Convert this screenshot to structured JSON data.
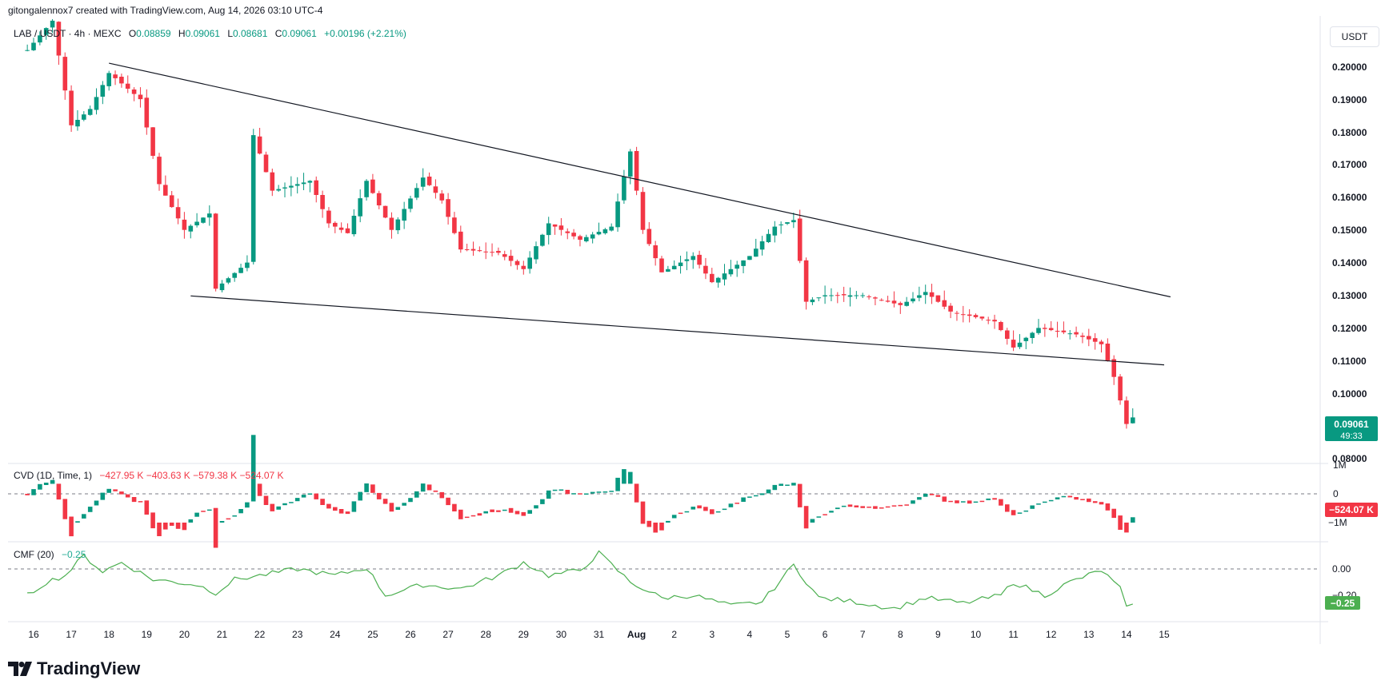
{
  "header": {
    "attribution": "gitongalennox7 created with TradingView.com, Aug 14, 2026 03:10 UTC-4"
  },
  "legend": {
    "symbol": "LAB / USDT · 4h · MEXC",
    "o_label": "O",
    "o": "0.08859",
    "h_label": "H",
    "h": "0.09061",
    "l_label": "L",
    "l": "0.08681",
    "c_label": "C",
    "c": "0.09061",
    "change": "+0.00196 (+2.21%)"
  },
  "currency_button": "USDT",
  "cvd_legend": {
    "title": "CVD (1D, Time, 1)",
    "values": "−427.95 K  −403.63 K  −579.38 K  −524.07 K"
  },
  "cmf_legend": {
    "title": "CMF (20)",
    "value": "−0.25"
  },
  "price_axis": {
    "ticks": [
      "0.20000",
      "0.19000",
      "0.18000",
      "0.17000",
      "0.16000",
      "0.15000",
      "0.14000",
      "0.13000",
      "0.12000",
      "0.11000",
      "0.10000",
      "0.08000"
    ]
  },
  "last_price": {
    "value": "0.09061",
    "countdown": "49:33"
  },
  "cvd_axis": {
    "ticks": [
      "1M",
      "0",
      "−1M"
    ],
    "last": "−524.07 K"
  },
  "cmf_axis": {
    "ticks": [
      "0.00",
      "−0.20"
    ],
    "last": "−0.25"
  },
  "time_axis": {
    "labels": [
      "16",
      "17",
      "18",
      "19",
      "20",
      "21",
      "22",
      "23",
      "24",
      "25",
      "26",
      "27",
      "28",
      "29",
      "30",
      "31",
      "Aug",
      "2",
      "3",
      "4",
      "5",
      "6",
      "7",
      "8",
      "9",
      "10",
      "11",
      "12",
      "13",
      "14",
      "15"
    ]
  },
  "brand": {
    "name": "TradingView"
  },
  "colors": {
    "up": "#089981",
    "down": "#f23645",
    "cmf": "#4caf50",
    "trendline": "#131722"
  },
  "chart_data": [
    {
      "type": "candlestick",
      "title": "LAB / USDT · 4h · MEXC",
      "ylim": [
        0.077,
        0.205
      ],
      "ylabel": "USDT",
      "xlabel": "",
      "x_range": [
        "2026-07-15T20:00",
        "2026-08-15T12:00"
      ],
      "grid": false,
      "ohlc_keyframes": [
        [
          "2026-07-15T20:00",
          0.203
        ],
        [
          "2026-07-16T12:00",
          0.212
        ],
        [
          "2026-07-17T00:00",
          0.18
        ],
        [
          "2026-07-17T12:00",
          0.185
        ],
        [
          "2026-07-18T00:00",
          0.196
        ],
        [
          "2026-07-18T20:00",
          0.188
        ],
        [
          "2026-07-19T08:00",
          0.162
        ],
        [
          "2026-07-20T00:00",
          0.148
        ],
        [
          "2026-07-20T16:00",
          0.153
        ],
        [
          "2026-07-20T20:00",
          0.13
        ],
        [
          "2026-07-21T16:00",
          0.138
        ],
        [
          "2026-07-21T20:00",
          0.177
        ],
        [
          "2026-07-22T08:00",
          0.16
        ],
        [
          "2026-07-23T08:00",
          0.163
        ],
        [
          "2026-07-23T20:00",
          0.15
        ],
        [
          "2026-07-24T08:00",
          0.147
        ],
        [
          "2026-07-24T20:00",
          0.163
        ],
        [
          "2026-07-25T12:00",
          0.148
        ],
        [
          "2026-07-26T08:00",
          0.164
        ],
        [
          "2026-07-26T20:00",
          0.157
        ],
        [
          "2026-07-27T08:00",
          0.142
        ],
        [
          "2026-07-28T08:00",
          0.141
        ],
        [
          "2026-07-29T00:00",
          0.136
        ],
        [
          "2026-07-29T16:00",
          0.15
        ],
        [
          "2026-07-30T12:00",
          0.145
        ],
        [
          "2026-07-31T08:00",
          0.149
        ],
        [
          "2026-07-31T20:00",
          0.172
        ],
        [
          "2026-08-01T04:00",
          0.148
        ],
        [
          "2026-08-01T16:00",
          0.135
        ],
        [
          "2026-08-02T12:00",
          0.14
        ],
        [
          "2026-08-03T00:00",
          0.132
        ],
        [
          "2026-08-04T00:00",
          0.14
        ],
        [
          "2026-08-04T16:00",
          0.149
        ],
        [
          "2026-08-05T04:00",
          0.151
        ],
        [
          "2026-08-05T12:00",
          0.126
        ],
        [
          "2026-08-06T00:00",
          0.128
        ],
        [
          "2026-08-07T00:00",
          0.128
        ],
        [
          "2026-08-08T00:00",
          0.125
        ],
        [
          "2026-08-08T16:00",
          0.129
        ],
        [
          "2026-08-09T08:00",
          0.123
        ],
        [
          "2026-08-10T12:00",
          0.12
        ],
        [
          "2026-08-11T00:00",
          0.112
        ],
        [
          "2026-08-11T16:00",
          0.118
        ],
        [
          "2026-08-12T16:00",
          0.116
        ],
        [
          "2026-08-13T08:00",
          0.113
        ],
        [
          "2026-08-13T16:00",
          0.103
        ],
        [
          "2026-08-14T00:00",
          0.0886
        ],
        [
          "2026-08-14T04:00",
          0.09061
        ]
      ]
    },
    {
      "type": "candlestick",
      "title": "CVD (1D, Time, 1)",
      "yticks": [
        "1M",
        "0",
        "−1M"
      ],
      "last_value": "−524.07 K",
      "description": "Cumulative volume delta per 4h candle, roughly ranging between about +0.3M and −1.0M"
    },
    {
      "type": "line",
      "title": "CMF (20)",
      "ylim": [
        -0.33,
        0.17
      ],
      "last_value": -0.25,
      "keyframes": [
        [
          "2026-07-15T20:00",
          -0.2
        ],
        [
          "2026-07-16T08:00",
          -0.1
        ],
        [
          "2026-07-16T20:00",
          -0.05
        ],
        [
          "2026-07-17T08:00",
          0.1
        ],
        [
          "2026-07-17T20:00",
          -0.02
        ],
        [
          "2026-07-18T08:00",
          0.05
        ],
        [
          "2026-07-19T04:00",
          -0.08
        ],
        [
          "2026-07-20T08:00",
          -0.12
        ],
        [
          "2026-07-20T20:00",
          -0.18
        ],
        [
          "2026-07-21T08:00",
          -0.08
        ],
        [
          "2026-07-22T00:00",
          -0.05
        ],
        [
          "2026-07-23T00:00",
          0.0
        ],
        [
          "2026-07-24T00:00",
          -0.05
        ],
        [
          "2026-07-24T20:00",
          0.01
        ],
        [
          "2026-07-25T08:00",
          -0.2
        ],
        [
          "2026-07-26T08:00",
          -0.12
        ],
        [
          "2026-07-27T08:00",
          -0.15
        ],
        [
          "2026-07-28T08:00",
          -0.05
        ],
        [
          "2026-07-29T00:00",
          0.05
        ],
        [
          "2026-07-29T16:00",
          -0.05
        ],
        [
          "2026-07-30T12:00",
          -0.01
        ],
        [
          "2026-07-31T00:00",
          0.12
        ],
        [
          "2026-07-31T20:00",
          -0.1
        ],
        [
          "2026-08-01T16:00",
          -0.22
        ],
        [
          "2026-08-02T12:00",
          -0.2
        ],
        [
          "2026-08-03T12:00",
          -0.28
        ],
        [
          "2026-08-04T08:00",
          -0.25
        ],
        [
          "2026-08-05T04:00",
          0.03
        ],
        [
          "2026-08-05T20:00",
          -0.22
        ],
        [
          "2026-08-06T20:00",
          -0.25
        ],
        [
          "2026-08-07T20:00",
          -0.3
        ],
        [
          "2026-08-08T16:00",
          -0.22
        ],
        [
          "2026-08-09T16:00",
          -0.26
        ],
        [
          "2026-08-10T16:00",
          -0.2
        ],
        [
          "2026-08-11T00:00",
          -0.1
        ],
        [
          "2026-08-11T20:00",
          -0.2
        ],
        [
          "2026-08-12T12:00",
          -0.1
        ],
        [
          "2026-08-13T08:00",
          -0.01
        ],
        [
          "2026-08-13T20:00",
          -0.15
        ],
        [
          "2026-08-14T00:00",
          -0.3
        ],
        [
          "2026-08-14T04:00",
          -0.25
        ]
      ]
    }
  ],
  "trendlines": [
    {
      "name": "upper",
      "from": [
        "2026-07-18T00:00",
        0.199
      ],
      "to": [
        "2026-08-15T04:00",
        0.1275
      ]
    },
    {
      "name": "lower",
      "from": [
        "2026-07-20T04:00",
        0.1278
      ],
      "to": [
        "2026-08-15T00:00",
        0.1067
      ]
    }
  ]
}
